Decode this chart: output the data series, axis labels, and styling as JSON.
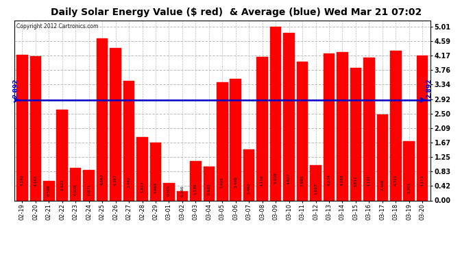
{
  "title": "Daily Solar Energy Value ($ red)  & Average (blue) Wed Mar 21 07:02",
  "copyright": "Copyright 2012 Cartronics.com",
  "categories": [
    "02-19",
    "02-20",
    "02-21",
    "02-22",
    "02-23",
    "02-24",
    "02-25",
    "02-26",
    "02-27",
    "02-28",
    "02-29",
    "03-01",
    "03-02",
    "03-03",
    "03-04",
    "03-05",
    "03-06",
    "03-07",
    "03-08",
    "03-09",
    "03-10",
    "03-11",
    "03-12",
    "03-13",
    "03-14",
    "03-15",
    "03-16",
    "03-17",
    "03-18",
    "03-19",
    "03-20"
  ],
  "values": [
    4.192,
    4.163,
    0.568,
    2.623,
    0.928,
    0.871,
    4.667,
    4.397,
    3.442,
    1.817,
    1.665,
    0.501,
    0.266,
    1.135,
    0.981,
    3.405,
    3.498,
    1.462,
    4.139,
    5.008,
    4.827,
    3.995,
    1.023,
    4.234,
    4.268,
    3.811,
    4.121,
    2.468,
    4.311,
    1.701,
    4.173
  ],
  "average": 2.892,
  "bar_color": "#ff0000",
  "avg_line_color": "#0000cc",
  "background_color": "#ffffff",
  "plot_bg_color": "#ffffff",
  "yticks": [
    0.0,
    0.42,
    0.83,
    1.25,
    1.67,
    2.09,
    2.5,
    2.92,
    3.34,
    3.76,
    4.17,
    4.59,
    5.01
  ],
  "ylim": [
    0.0,
    5.18
  ],
  "grid_color": "#bbbbbb",
  "title_fontsize": 10,
  "bar_edge_color": "#ff0000",
  "avg_label": "2.892",
  "avg_label_color": "#0000cc",
  "label_fontsize": 4.2,
  "ytick_fontsize": 7,
  "xtick_fontsize": 6
}
